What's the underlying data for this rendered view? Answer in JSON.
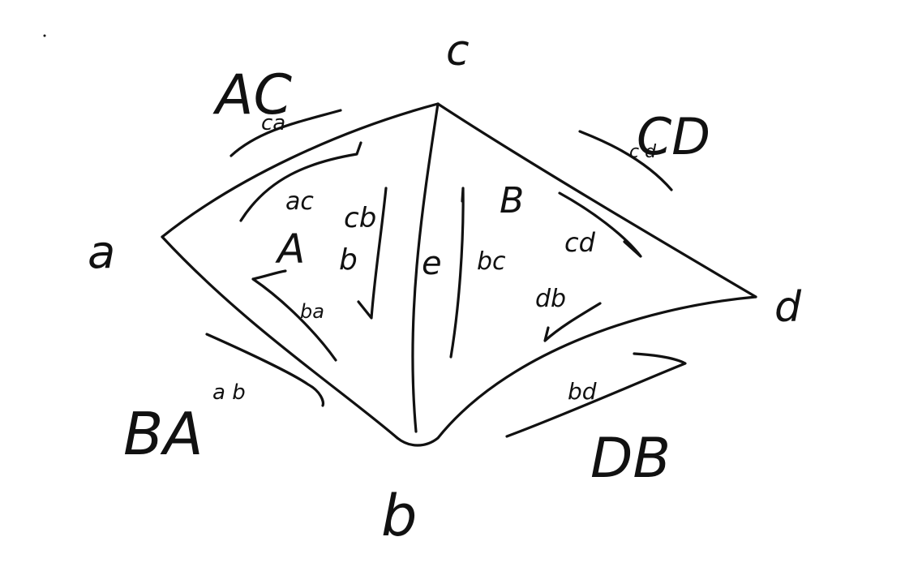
{
  "colors": {
    "ink": "#111111",
    "background": "#ffffff"
  },
  "vertices": {
    "a": "a",
    "b": "b",
    "c": "c",
    "d": "d"
  },
  "edge_labels": {
    "ca_outer": "AC",
    "ca_small": "ca",
    "cd_outer": "CD",
    "cd_small": "c d",
    "ba_outer": "BA",
    "ba_small": "a b",
    "bd_outer": "DB",
    "bd_small": "bd"
  },
  "face_labels": {
    "left_face": "A",
    "right_face": "B"
  },
  "inner_arrows": {
    "ac": "ac",
    "cb": "cb",
    "ba": "ba",
    "b_mark": "b",
    "e": "e",
    "bc": "bc",
    "cd": "cd",
    "db": "db"
  }
}
